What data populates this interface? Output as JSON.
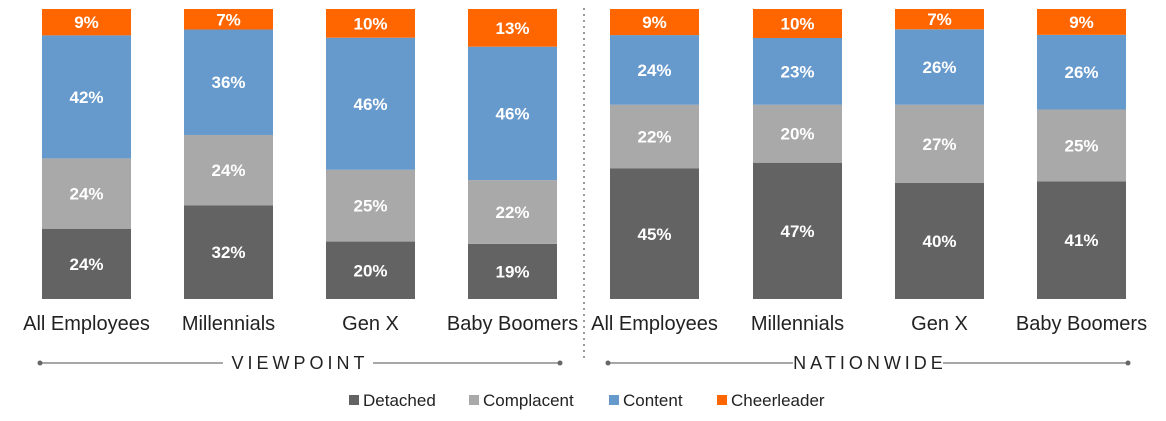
{
  "chart_data": {
    "type": "bar",
    "stacked": true,
    "normalized_percent": true,
    "groups": [
      {
        "label": "VIEWPOINT",
        "categories": [
          "All Employees",
          "Millennials",
          "Gen X",
          "Baby Boomers"
        ],
        "series": [
          {
            "name": "Detached",
            "values": [
              24,
              32,
              20,
              19
            ]
          },
          {
            "name": "Complacent",
            "values": [
              24,
              24,
              25,
              22
            ]
          },
          {
            "name": "Content",
            "values": [
              42,
              36,
              46,
              46
            ]
          },
          {
            "name": "Cheerleader",
            "values": [
              9,
              7,
              10,
              13
            ]
          }
        ]
      },
      {
        "label": "NATIONWIDE",
        "categories": [
          "All Employees",
          "Millennials",
          "Gen X",
          "Baby Boomers"
        ],
        "series": [
          {
            "name": "Detached",
            "values": [
              45,
              47,
              40,
              41
            ]
          },
          {
            "name": "Complacent",
            "values": [
              22,
              20,
              27,
              25
            ]
          },
          {
            "name": "Content",
            "values": [
              24,
              23,
              26,
              26
            ]
          },
          {
            "name": "Cheerleader",
            "values": [
              9,
              10,
              7,
              9
            ]
          }
        ]
      }
    ],
    "legend": {
      "position": "bottom",
      "items": [
        {
          "name": "Detached",
          "color": "#636363"
        },
        {
          "name": "Complacent",
          "color": "#a9a9a9"
        },
        {
          "name": "Content",
          "color": "#6699cc"
        },
        {
          "name": "Cheerleader",
          "color": "#ff6600"
        }
      ]
    },
    "value_suffix": "%",
    "grid": false
  }
}
